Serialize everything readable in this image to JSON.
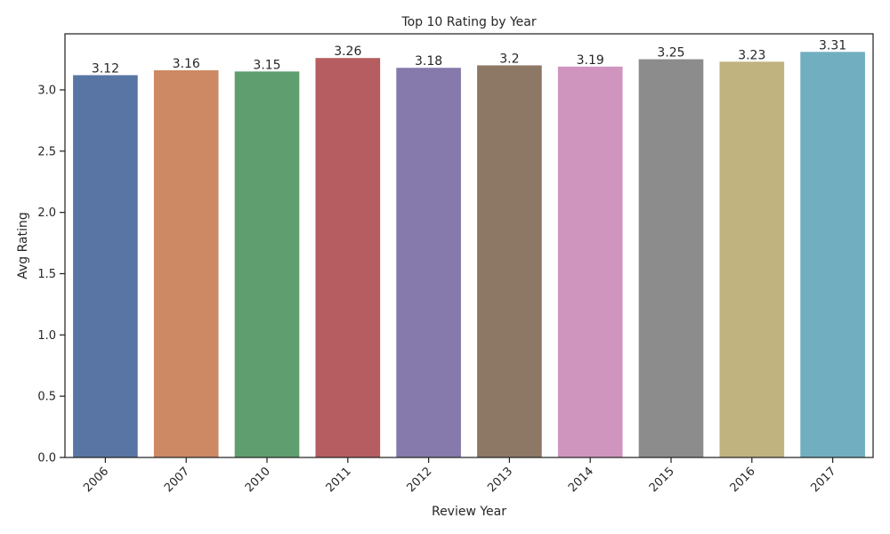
{
  "chart_data": {
    "type": "bar",
    "title": "Top 10 Rating by Year",
    "xlabel": "Review Year",
    "ylabel": "Avg Rating",
    "categories": [
      "2006",
      "2007",
      "2010",
      "2011",
      "2012",
      "2013",
      "2014",
      "2015",
      "2016",
      "2017"
    ],
    "values": [
      3.12,
      3.16,
      3.15,
      3.26,
      3.18,
      3.2,
      3.19,
      3.25,
      3.23,
      3.31
    ],
    "value_labels": [
      "3.12",
      "3.16",
      "3.15",
      "3.26",
      "3.18",
      "3.2",
      "3.19",
      "3.25",
      "3.23",
      "3.31"
    ],
    "colors": [
      "#5975a4",
      "#cc8963",
      "#5f9e6e",
      "#b55d60",
      "#857aab",
      "#8d7866",
      "#d095bf",
      "#8c8c8c",
      "#c1b37f",
      "#71aec0"
    ],
    "ylim": [
      0,
      3.4575
    ],
    "yticks": [
      0.0,
      0.5,
      1.0,
      1.5,
      2.0,
      2.5,
      3.0
    ],
    "ytick_labels": [
      "0.0",
      "0.5",
      "1.0",
      "1.5",
      "2.0",
      "2.5",
      "3.0"
    ],
    "grid": false,
    "legend": "none"
  }
}
